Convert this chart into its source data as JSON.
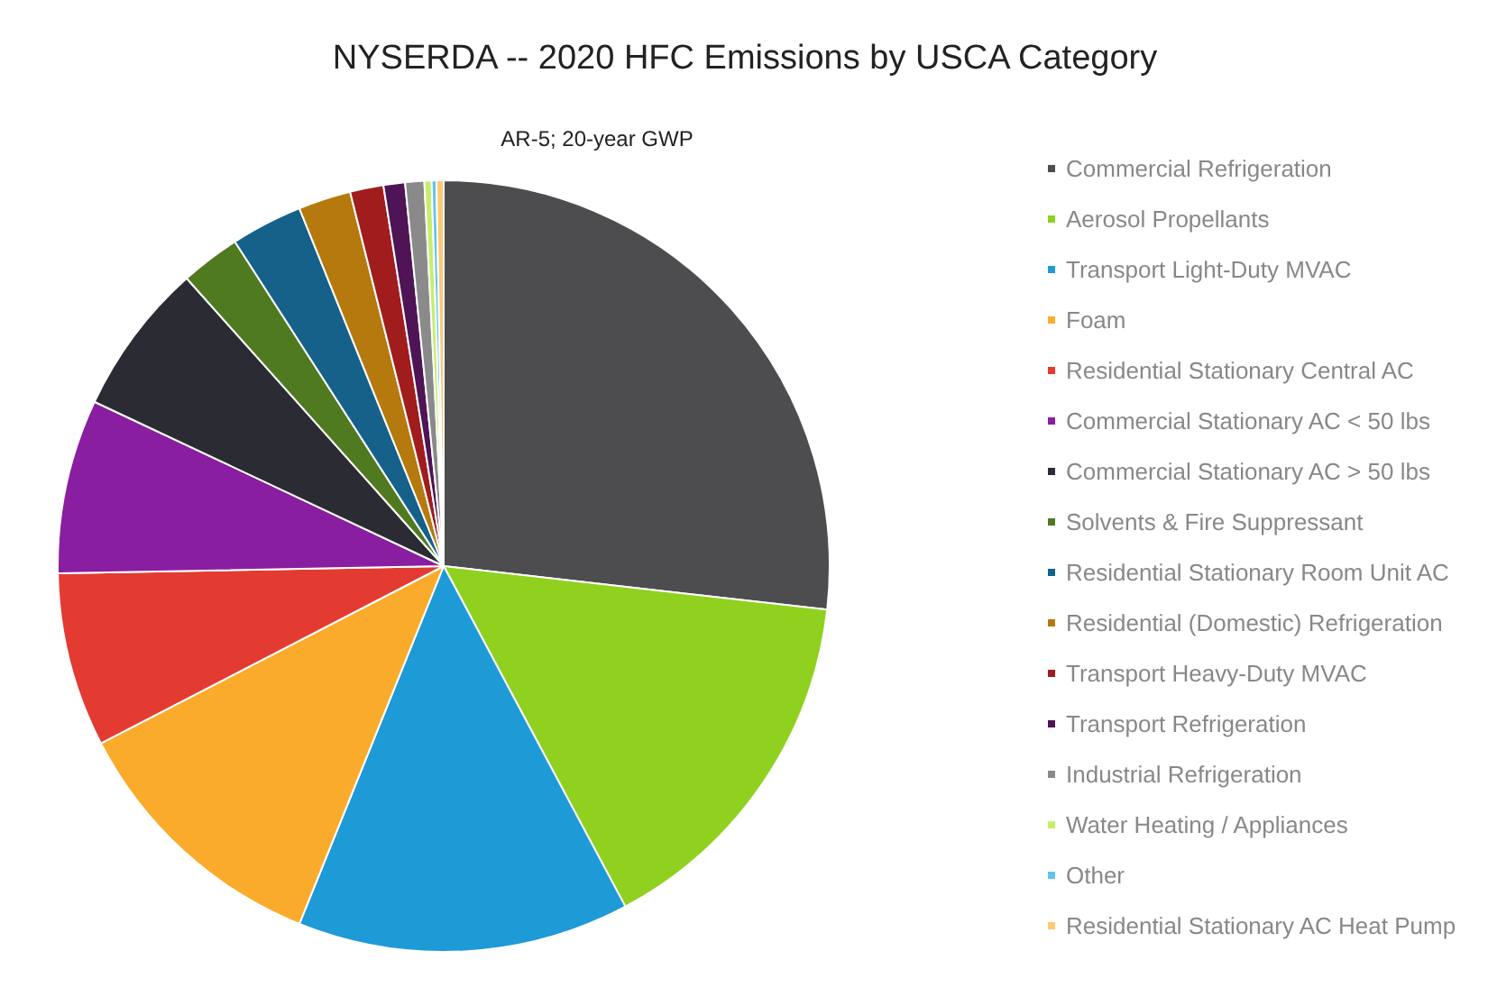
{
  "chart_data": {
    "type": "pie",
    "title": "NYSERDA -- 2020 HFC Emissions by USCA Category",
    "subtitle": "AR-5; 20-year GWP",
    "categories": [
      "Commercial Refrigeration",
      "Aerosol Propellants",
      "Transport Light-Duty MVAC",
      "Foam",
      "Residential Stationary Central AC",
      "Commercial Stationary AC < 50 lbs",
      "Commercial Stationary AC > 50 lbs",
      "Solvents & Fire Suppressant",
      "Residential Stationary Room Unit AC",
      "Residential (Domestic) Refrigeration",
      "Transport Heavy-Duty MVAC",
      "Transport Refrigeration",
      "Industrial Refrigeration",
      "Water Heating / Appliances",
      "Other",
      "Residential Stationary AC Heat Pump"
    ],
    "values": [
      26.8,
      15.4,
      13.9,
      11.3,
      7.3,
      7.3,
      6.4,
      2.5,
      3.0,
      2.2,
      1.4,
      0.9,
      0.8,
      0.3,
      0.2,
      0.3
    ],
    "colors": [
      "#4d4d50",
      "#8fd11e",
      "#1e9ad6",
      "#fbab2c",
      "#e33b32",
      "#8a1ea0",
      "#2b2b33",
      "#4f7a1f",
      "#15618a",
      "#b5790e",
      "#a11c1c",
      "#4e1455",
      "#8a8a8a",
      "#c5ef6a",
      "#63c3ee",
      "#fcc975"
    ],
    "legend": "right"
  }
}
